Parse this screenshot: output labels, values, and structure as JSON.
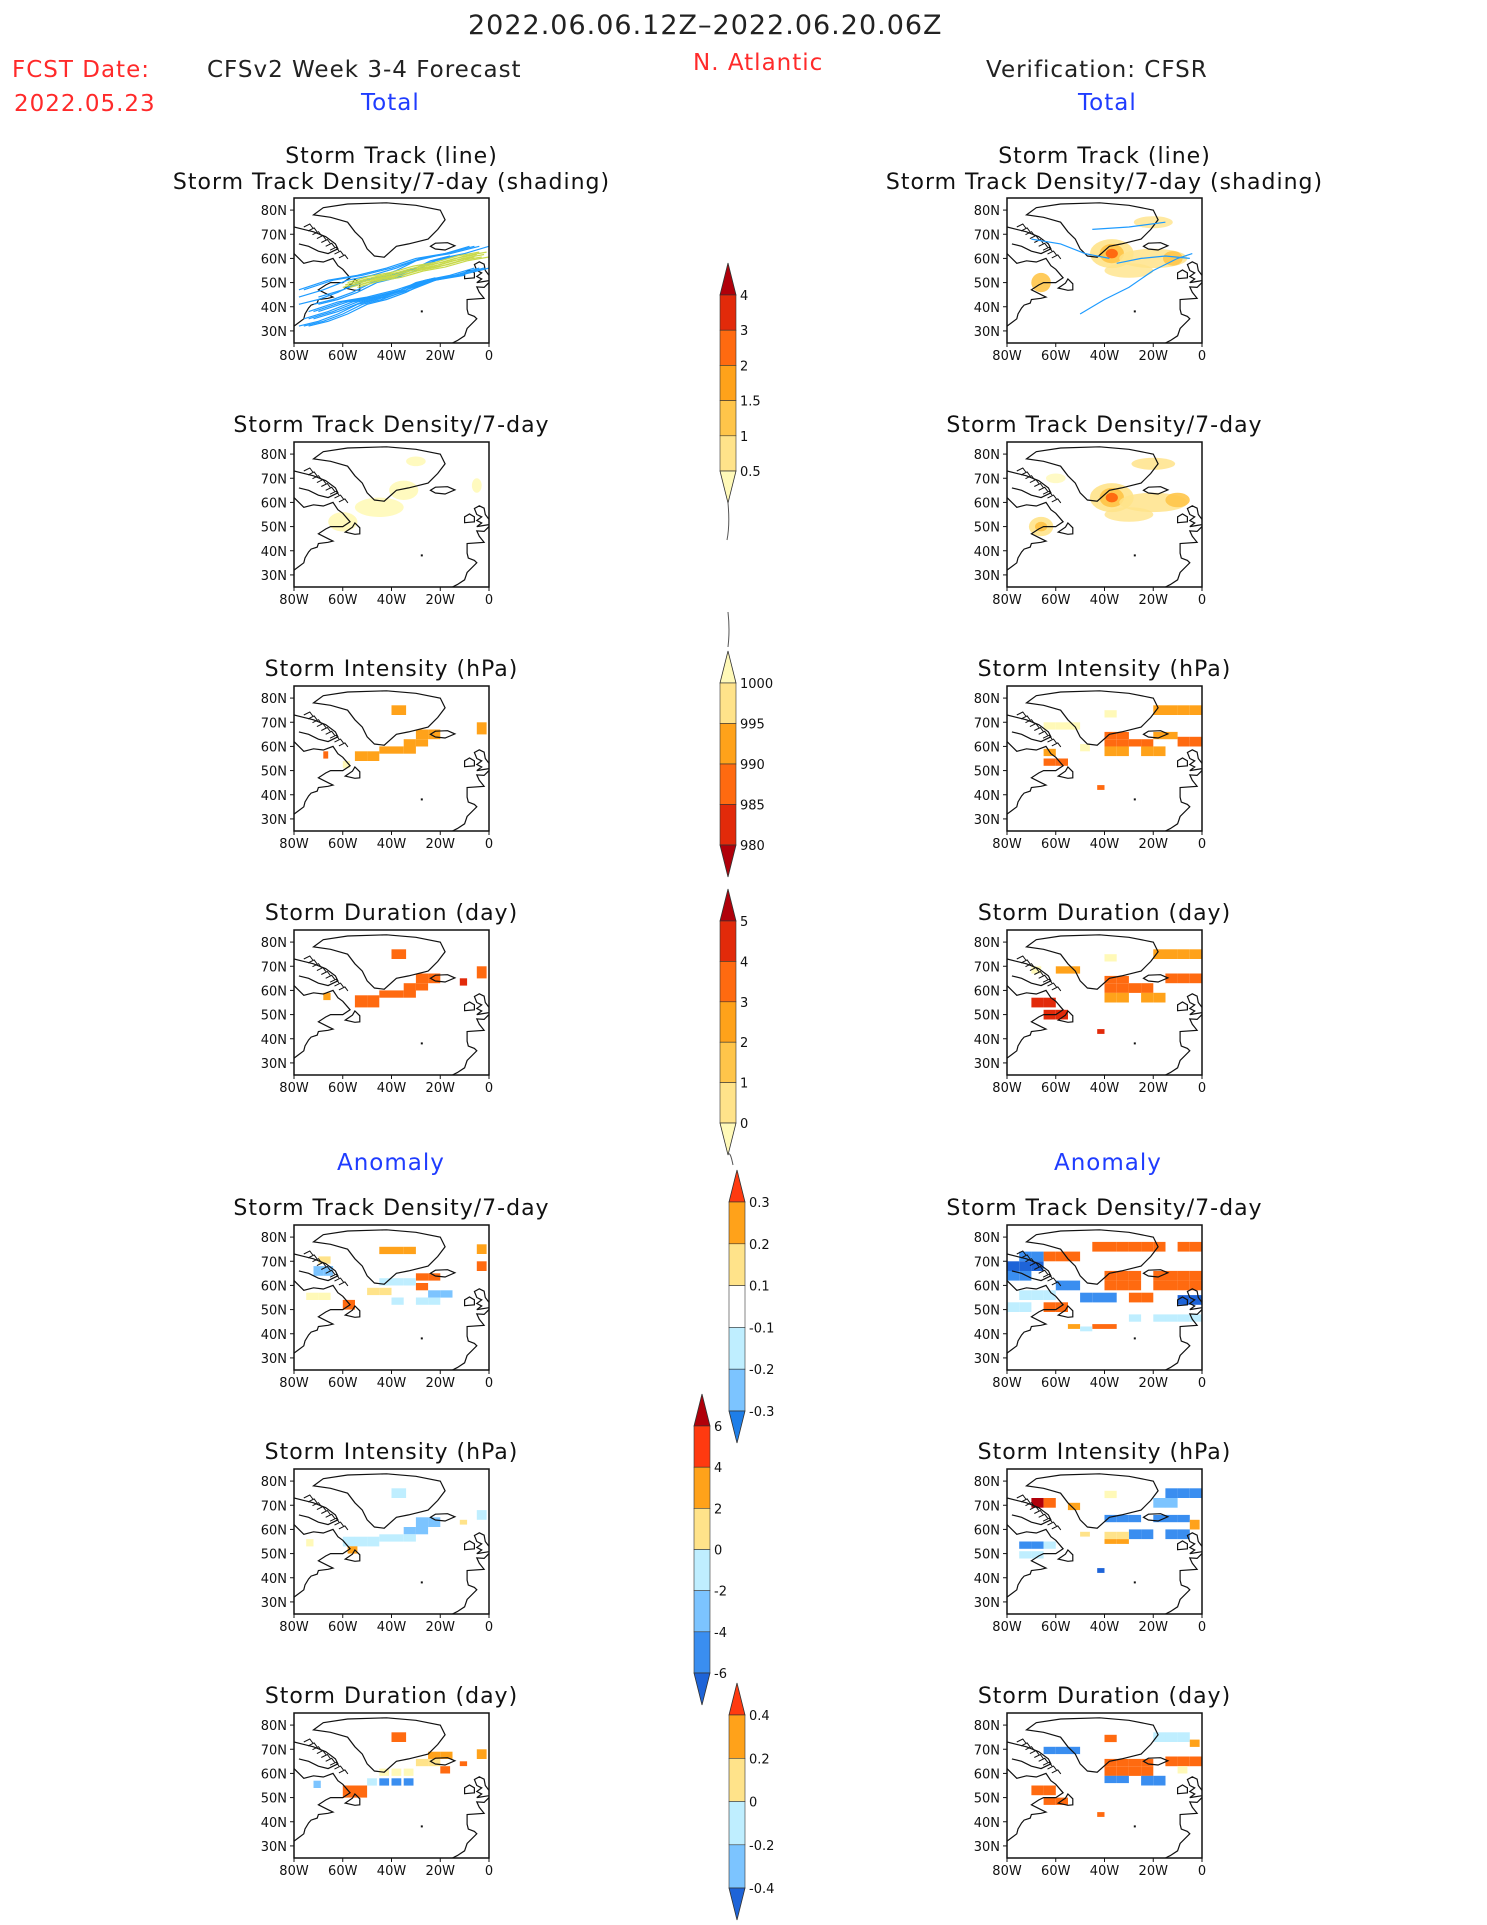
{
  "header": {
    "date_range": "2022.06.06.12Z–2022.06.20.06Z",
    "fcst_label": "FCST Date:",
    "fcst_date": "2022.05.23",
    "model_title": "CFSv2 Week 3-4 Forecast",
    "region": "N. Atlantic",
    "verification": "Verification: CFSR",
    "left_total": "Total",
    "right_total": "Total",
    "left_anomaly": "Anomaly",
    "right_anomaly": "Anomaly"
  },
  "panel_titles": {
    "track_line": "Storm Track (line)",
    "track_shading": "Storm Track Density/7-day (shading)",
    "density": "Storm Track Density/7-day",
    "intensity": "Storm Intensity (hPa)",
    "duration": "Storm Duration (day)"
  },
  "colors": {
    "header_red": "#ff2a2a",
    "header_blue": "#1f3cff",
    "track_fcst_a": "#1e9bff",
    "track_fcst_b": "#c8d94a",
    "track_obs": "#1e9bff"
  },
  "chart_data": [
    {
      "type": "heatmap",
      "id": "map_axes",
      "xlabel": "",
      "ylabel": "",
      "x_ticks": [
        "80W",
        "60W",
        "40W",
        "20W",
        "0"
      ],
      "y_ticks": [
        "80N",
        "70N",
        "60N",
        "50N",
        "40N",
        "30N"
      ],
      "xlim": [
        -80,
        0
      ],
      "ylim": [
        25,
        85
      ]
    },
    {
      "type": "heatmap",
      "id": "cb_density",
      "levels": [
        "0.5",
        "1",
        "1.5",
        "2",
        "3",
        "4"
      ],
      "colors": [
        "#fff9b8",
        "#ffe38a",
        "#ffc54a",
        "#ffa21a",
        "#ff6a10",
        "#e22a0a",
        "#b0000a"
      ]
    },
    {
      "type": "heatmap",
      "id": "cb_intensity",
      "levels": [
        "1000",
        "995",
        "990",
        "985",
        "980"
      ],
      "colors": [
        "#fff9b8",
        "#ffe38a",
        "#ffa21a",
        "#ff6a10",
        "#e22a0a",
        "#b0000a"
      ]
    },
    {
      "type": "heatmap",
      "id": "cb_duration",
      "levels": [
        "0",
        "1",
        "2",
        "3",
        "4",
        "5"
      ],
      "colors": [
        "#fff9b8",
        "#ffe38a",
        "#ffc54a",
        "#ffa21a",
        "#ff6a10",
        "#e22a0a",
        "#b0000a"
      ]
    },
    {
      "type": "heatmap",
      "id": "cb_anom_density",
      "levels": [
        "0.3",
        "0.2",
        "0.1",
        "-0.1",
        "-0.2",
        "-0.3"
      ],
      "colors": [
        "#ff3a10",
        "#ffa21a",
        "#ffe38a",
        "#ffffff",
        "#bfeeff",
        "#7cc4ff",
        "#1e7ee8"
      ]
    },
    {
      "type": "heatmap",
      "id": "cb_anom_intensity",
      "levels": [
        "6",
        "4",
        "2",
        "0",
        "-2",
        "-4",
        "-6"
      ],
      "colors": [
        "#b0000a",
        "#ff3a10",
        "#ffa21a",
        "#ffe38a",
        "#bfeeff",
        "#7cc4ff",
        "#3a8ef0",
        "#1e64d8"
      ]
    },
    {
      "type": "heatmap",
      "id": "cb_anom_duration",
      "levels": [
        "0.4",
        "0.2",
        "0",
        "-0.2",
        "-0.4"
      ],
      "colors": [
        "#ff3a10",
        "#ffa21a",
        "#ffe38a",
        "#bfeeff",
        "#7cc4ff",
        "#1e64d8"
      ]
    }
  ]
}
